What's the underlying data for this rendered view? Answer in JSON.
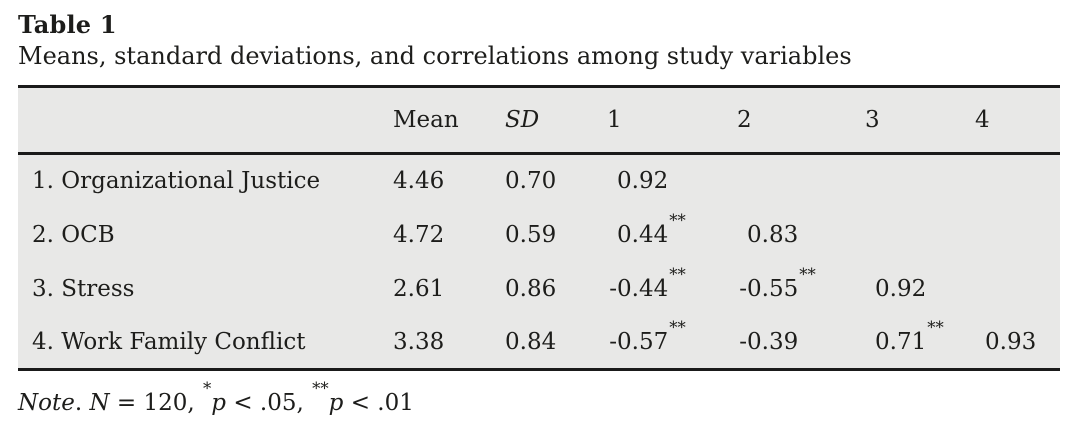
{
  "title": "Table 1",
  "caption": "Means, standard deviations, and correlations among study variables",
  "table": {
    "columns": [
      {
        "label": "",
        "italic": false
      },
      {
        "label": "Mean",
        "italic": false
      },
      {
        "label": "SD",
        "italic": true
      },
      {
        "label": "1",
        "italic": false
      },
      {
        "label": "2",
        "italic": false
      },
      {
        "label": "3",
        "italic": false
      },
      {
        "label": "4",
        "italic": false
      }
    ],
    "rows": [
      {
        "label": "1. Organizational Justice",
        "values": [
          "4.46",
          "0.70",
          "0.92",
          "",
          "",
          ""
        ]
      },
      {
        "label": "2. OCB",
        "values": [
          "4.72",
          "0.59",
          "0.44**",
          "0.83",
          "",
          ""
        ]
      },
      {
        "label": "3. Stress",
        "values": [
          "2.61",
          "0.86",
          "-0.44**",
          "-0.55**",
          "0.92",
          ""
        ]
      },
      {
        "label": "4. Work Family Conflict",
        "values": [
          "3.38",
          "0.84",
          "-0.57**",
          "-0.39",
          "0.71**",
          "0.93"
        ]
      }
    ]
  },
  "note": {
    "segments": [
      {
        "text": "Note",
        "italic": true
      },
      {
        "text": ". "
      },
      {
        "text": "N",
        "italic": true
      },
      {
        "text": " = 120, "
      },
      {
        "text": "*",
        "sup": true
      },
      {
        "text": "p",
        "italic": true
      },
      {
        "text": " < .05, "
      },
      {
        "text": "**",
        "sup": true
      },
      {
        "text": "p",
        "italic": true
      },
      {
        "text": " < .01"
      }
    ]
  },
  "colors": {
    "page_bg": "#ffffff",
    "table_bg": "#e8e8e7",
    "rule": "#1a1a1a",
    "text": "#1d1d1b"
  }
}
